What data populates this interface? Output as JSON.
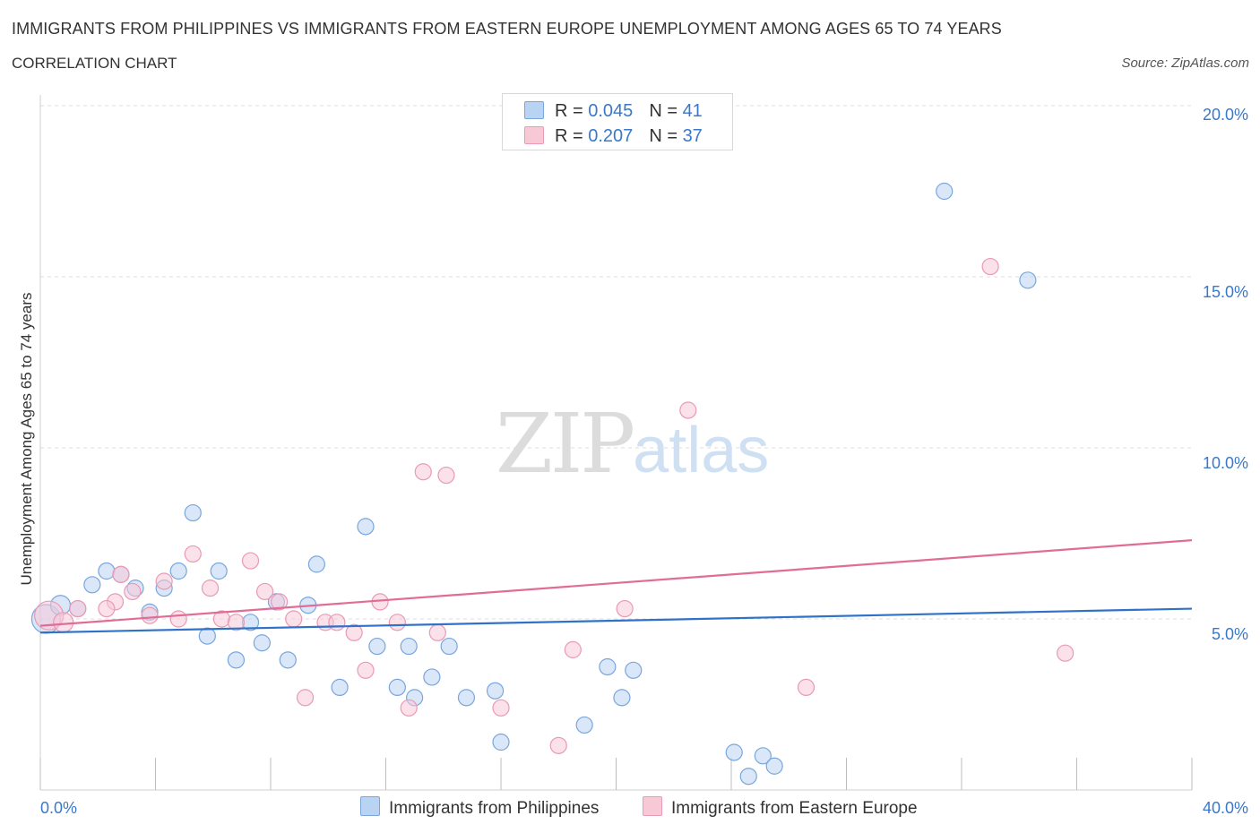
{
  "header": {
    "title": "IMMIGRANTS FROM PHILIPPINES VS IMMIGRANTS FROM EASTERN EUROPE UNEMPLOYMENT AMONG AGES 65 TO 74 YEARS",
    "subtitle": "CORRELATION CHART",
    "source": "Source: ZipAtlas.com"
  },
  "watermark": {
    "zip": "ZIP",
    "atlas": "atlas"
  },
  "legend_top": {
    "rows": [
      {
        "r_label": "R =",
        "r_value": "0.045",
        "n_label": "N =",
        "n_value": "41"
      },
      {
        "r_label": "R =",
        "r_value": "0.207",
        "n_label": "N =",
        "n_value": "37"
      }
    ]
  },
  "colors": {
    "philippines_fill": "#b9d3f3",
    "philippines_stroke": "#7aa6dc",
    "philippines_line": "#2f72c8",
    "eastern_fill": "#f7c9d7",
    "eastern_stroke": "#e99ab4",
    "eastern_line": "#e06d96",
    "axis_text": "#3a78c9",
    "grid": "#dcdcdc"
  },
  "chart_data": {
    "type": "scatter",
    "title": "IMMIGRANTS FROM PHILIPPINES VS IMMIGRANTS FROM EASTERN EUROPE UNEMPLOYMENT AMONG AGES 65 TO 74 YEARS",
    "xlabel": "",
    "ylabel": "Unemployment Among Ages 65 to 74 years",
    "xlim": [
      0,
      40
    ],
    "ylim": [
      0,
      20
    ],
    "x_tick_labels": [
      "0.0%",
      "40.0%"
    ],
    "y_ticks": [
      5,
      10,
      15,
      20
    ],
    "y_tick_labels": [
      "5.0%",
      "10.0%",
      "15.0%",
      "20.0%"
    ],
    "grid": true,
    "series": [
      {
        "name": "Immigrants from Philippines",
        "r": 0.045,
        "n": 41,
        "trend": {
          "x0": 0,
          "y0": 4.6,
          "x1": 40,
          "y1": 5.3
        },
        "points": [
          [
            0.2,
            5.0,
            16
          ],
          [
            0.7,
            5.4,
            11
          ],
          [
            1.3,
            5.3,
            9
          ],
          [
            1.8,
            6.0,
            9
          ],
          [
            2.3,
            6.4,
            9
          ],
          [
            2.8,
            6.3,
            9
          ],
          [
            3.3,
            5.9,
            9
          ],
          [
            3.8,
            5.2,
            9
          ],
          [
            4.3,
            5.9,
            9
          ],
          [
            4.8,
            6.4,
            9
          ],
          [
            5.3,
            8.1,
            9
          ],
          [
            5.8,
            4.5,
            9
          ],
          [
            6.2,
            6.4,
            9
          ],
          [
            6.8,
            3.8,
            9
          ],
          [
            7.3,
            4.9,
            9
          ],
          [
            7.7,
            4.3,
            9
          ],
          [
            8.2,
            5.5,
            9
          ],
          [
            8.6,
            3.8,
            9
          ],
          [
            9.3,
            5.4,
            9
          ],
          [
            9.6,
            6.6,
            9
          ],
          [
            10.4,
            3.0,
            9
          ],
          [
            11.3,
            7.7,
            9
          ],
          [
            11.7,
            4.2,
            9
          ],
          [
            12.4,
            3.0,
            9
          ],
          [
            12.8,
            4.2,
            9
          ],
          [
            13.0,
            2.7,
            9
          ],
          [
            13.6,
            3.3,
            9
          ],
          [
            14.2,
            4.2,
            9
          ],
          [
            14.8,
            2.7,
            9
          ],
          [
            15.8,
            2.9,
            9
          ],
          [
            16.0,
            1.4,
            9
          ],
          [
            18.9,
            1.9,
            9
          ],
          [
            19.7,
            3.6,
            9
          ],
          [
            20.2,
            2.7,
            9
          ],
          [
            20.6,
            3.5,
            9
          ],
          [
            24.1,
            1.1,
            9
          ],
          [
            24.6,
            0.4,
            9
          ],
          [
            25.1,
            1.0,
            9
          ],
          [
            25.5,
            0.7,
            9
          ],
          [
            31.4,
            17.5,
            9
          ],
          [
            34.3,
            14.9,
            9
          ]
        ]
      },
      {
        "name": "Immigrants from Eastern Europe",
        "r": 0.207,
        "n": 37,
        "trend": {
          "x0": 0,
          "y0": 4.8,
          "x1": 40,
          "y1": 7.3
        },
        "points": [
          [
            0.3,
            5.1,
            16
          ],
          [
            0.8,
            4.9,
            11
          ],
          [
            1.3,
            5.3,
            9
          ],
          [
            2.6,
            5.5,
            9
          ],
          [
            2.3,
            5.3,
            9
          ],
          [
            2.8,
            6.3,
            9
          ],
          [
            3.2,
            5.8,
            9
          ],
          [
            3.8,
            5.1,
            9
          ],
          [
            4.3,
            6.1,
            9
          ],
          [
            4.8,
            5.0,
            9
          ],
          [
            5.3,
            6.9,
            9
          ],
          [
            5.9,
            5.9,
            9
          ],
          [
            6.3,
            5.0,
            9
          ],
          [
            6.8,
            4.9,
            9
          ],
          [
            7.3,
            6.7,
            9
          ],
          [
            7.8,
            5.8,
            9
          ],
          [
            8.3,
            5.5,
            9
          ],
          [
            8.8,
            5.0,
            9
          ],
          [
            9.2,
            2.7,
            9
          ],
          [
            9.9,
            4.9,
            9
          ],
          [
            10.3,
            4.9,
            9
          ],
          [
            10.9,
            4.6,
            9
          ],
          [
            11.3,
            3.5,
            9
          ],
          [
            11.8,
            5.5,
            9
          ],
          [
            12.4,
            4.9,
            9
          ],
          [
            12.8,
            2.4,
            9
          ],
          [
            13.3,
            9.3,
            9
          ],
          [
            13.8,
            4.6,
            9
          ],
          [
            14.1,
            9.2,
            9
          ],
          [
            16.0,
            2.4,
            9
          ],
          [
            18.0,
            1.3,
            9
          ],
          [
            18.5,
            4.1,
            9
          ],
          [
            20.3,
            5.3,
            9
          ],
          [
            22.5,
            11.1,
            9
          ],
          [
            26.6,
            3.0,
            9
          ],
          [
            33.0,
            15.3,
            9
          ],
          [
            35.6,
            4.0,
            9
          ]
        ]
      }
    ]
  },
  "bottom_legend": {
    "philippines": "Immigrants from Philippines",
    "eastern": "Immigrants from Eastern Europe"
  }
}
